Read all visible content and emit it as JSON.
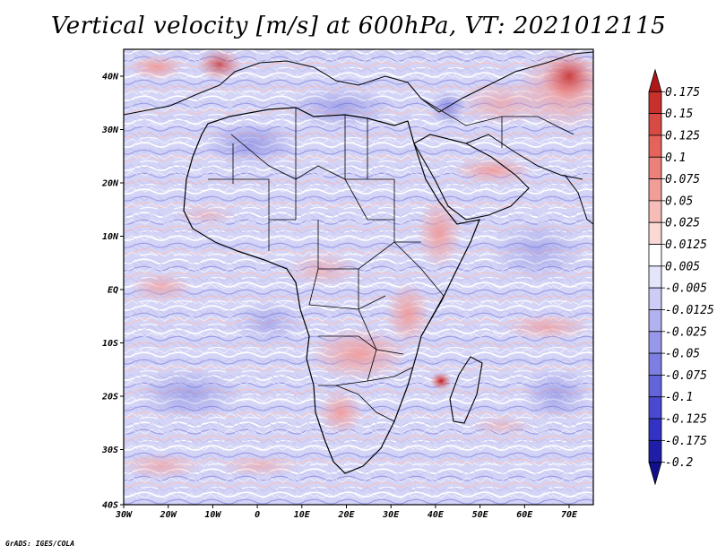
{
  "title": "Vertical velocity [m/s] at 600hPa, VT: 2021012115",
  "footer": "GrADS: IGES/COLA",
  "map": {
    "variable": "Vertical velocity",
    "units": "m/s",
    "level": "600hPa",
    "valid_time": "2021012115",
    "lon_ticks": [
      "30W",
      "20W",
      "10W",
      "0",
      "10E",
      "20E",
      "30E",
      "40E",
      "50E",
      "60E",
      "70E"
    ],
    "lat_ticks": [
      "40N",
      "30N",
      "20N",
      "10N",
      "EQ",
      "10S",
      "20S",
      "30S",
      "40S"
    ]
  },
  "colorbar": {
    "labels": [
      "0.175",
      "0.15",
      "0.125",
      "0.1",
      "0.075",
      "0.05",
      "0.025",
      "0.0125",
      "0.005",
      "-0.005",
      "-0.0125",
      "-0.025",
      "-0.05",
      "-0.075",
      "-0.1",
      "-0.125",
      "-0.175",
      "-0.2"
    ],
    "colors": [
      "#b01818",
      "#c8302c",
      "#d84a44",
      "#e4645c",
      "#ec807a",
      "#f29e98",
      "#f6bcb8",
      "#fad8d6",
      "#ffffff",
      "#e4e4fa",
      "#ccccf6",
      "#b2b2f0",
      "#9898ea",
      "#7e7ee2",
      "#6464da",
      "#4a4ad0",
      "#3232c4",
      "#1e1ea8",
      "#10108c"
    ]
  }
}
